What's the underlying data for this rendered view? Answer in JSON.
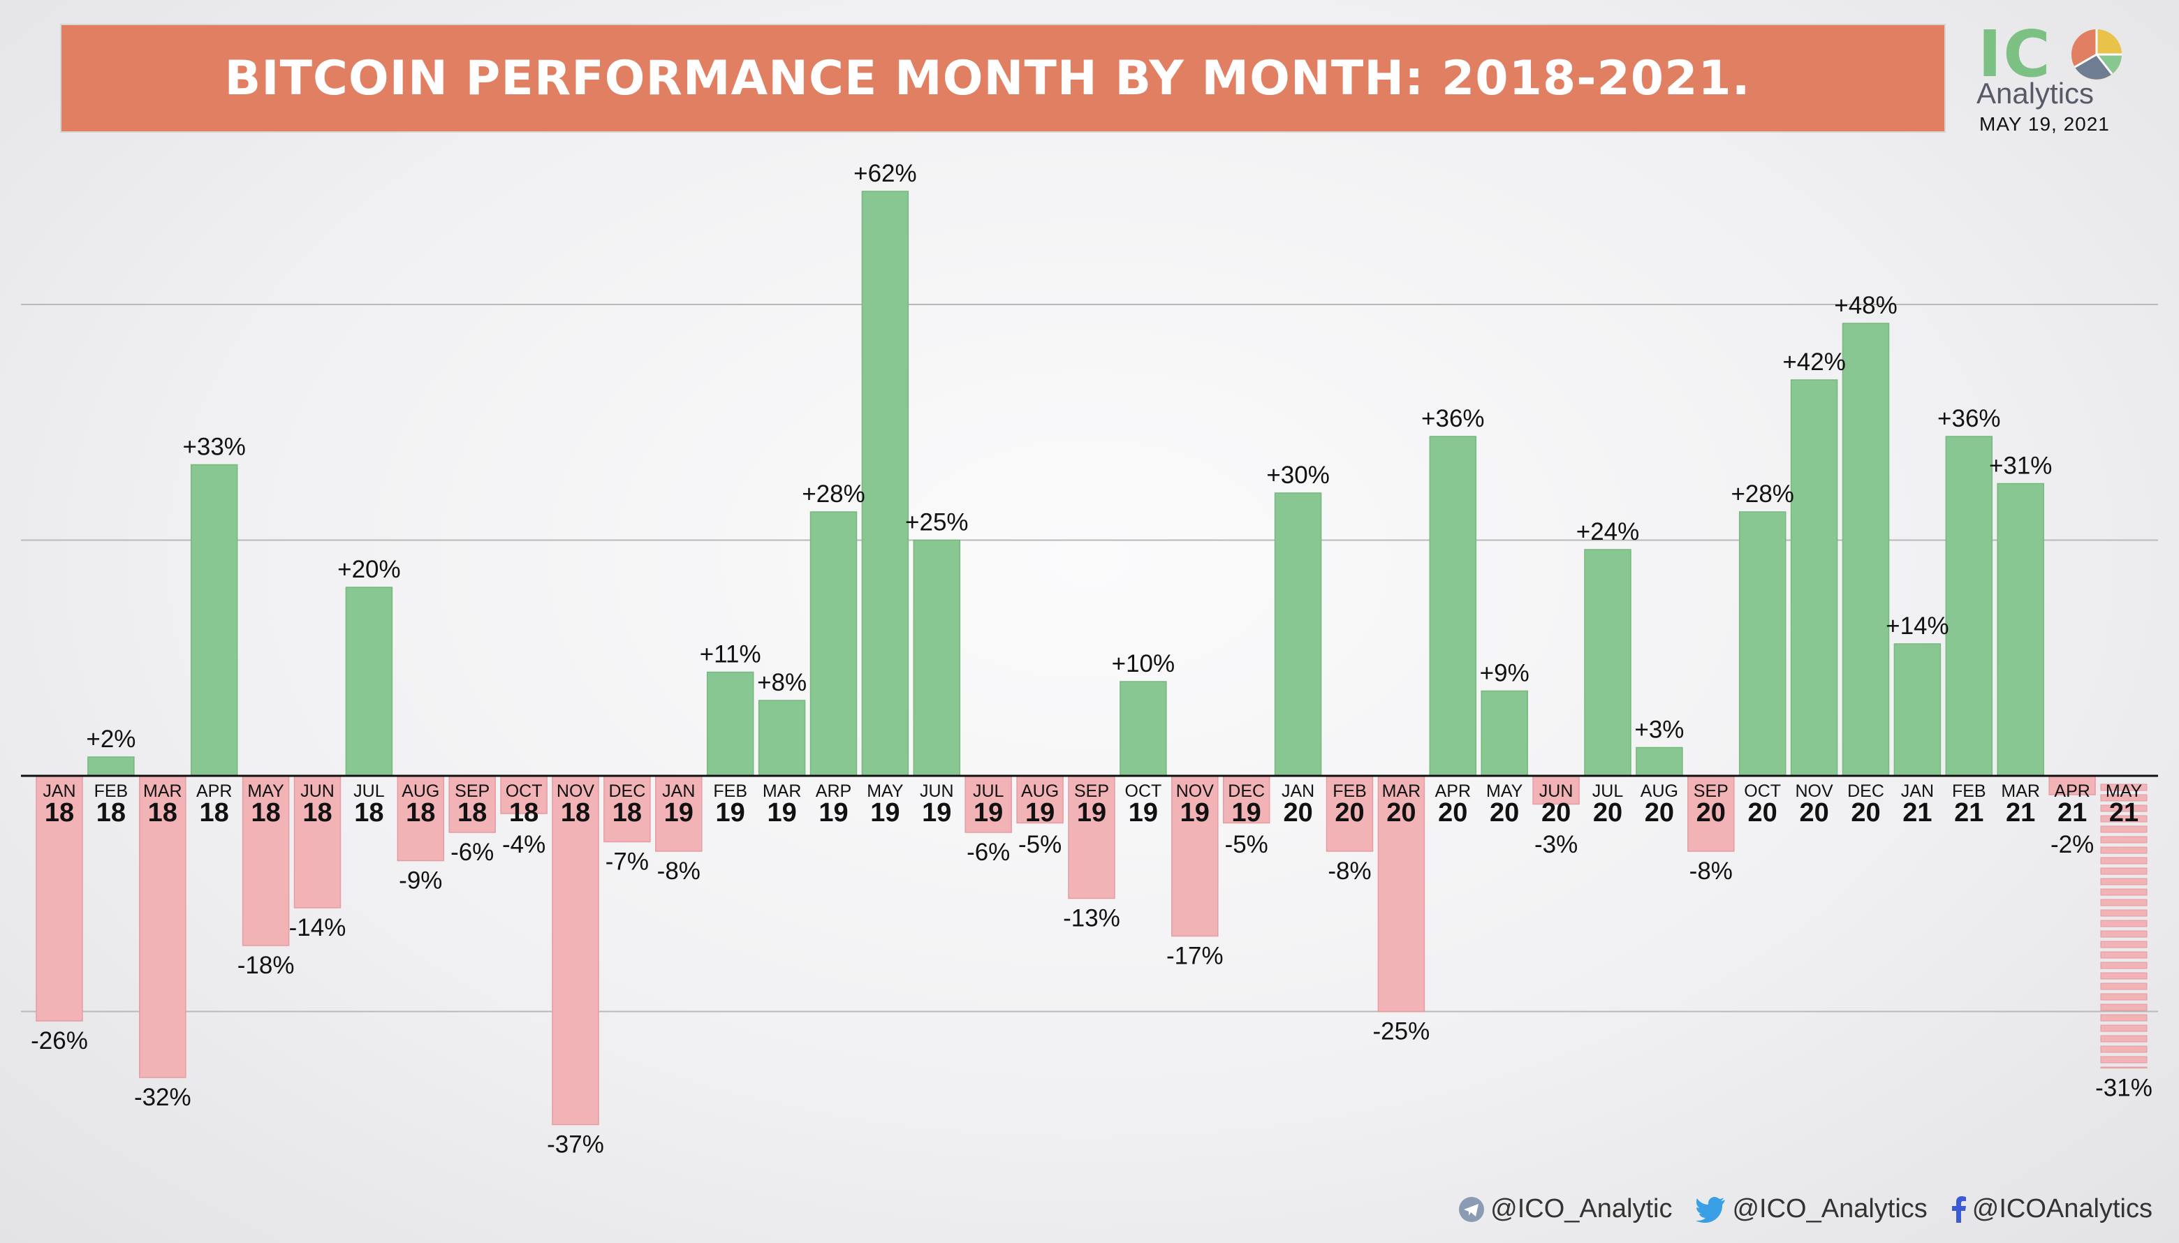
{
  "title": "BITCOIN PERFORMANCE MONTH BY MONTH: 2018-2021.",
  "logo": {
    "mark_letters": "IC",
    "name": "Analytics",
    "date": "MAY 19, 2021"
  },
  "footer": {
    "telegram": "@ICO_Analytic",
    "twitter": "@ICO_Analytics",
    "facebook": "@ICOAnalytics"
  },
  "colors": {
    "positive": "#88c791",
    "negative": "#f2b3b6",
    "banner": "#e17f63",
    "axis": "#111111",
    "grid": "#b9b9b9"
  },
  "chart_data": {
    "type": "bar",
    "title": "BITCOIN PERFORMANCE MONTH BY MONTH: 2018-2021.",
    "ylim": [
      -40,
      67
    ],
    "grid": true,
    "gridlines": [
      -25,
      25,
      50
    ],
    "categories": [
      {
        "month": "JAN",
        "year": "18"
      },
      {
        "month": "FEB",
        "year": "18"
      },
      {
        "month": "MAR",
        "year": "18"
      },
      {
        "month": "APR",
        "year": "18"
      },
      {
        "month": "MAY",
        "year": "18"
      },
      {
        "month": "JUN",
        "year": "18"
      },
      {
        "month": "JUL",
        "year": "18"
      },
      {
        "month": "AUG",
        "year": "18"
      },
      {
        "month": "SEP",
        "year": "18"
      },
      {
        "month": "OCT",
        "year": "18"
      },
      {
        "month": "NOV",
        "year": "18"
      },
      {
        "month": "DEC",
        "year": "18"
      },
      {
        "month": "JAN",
        "year": "19"
      },
      {
        "month": "FEB",
        "year": "19"
      },
      {
        "month": "MAR",
        "year": "19"
      },
      {
        "month": "ARP",
        "year": "19"
      },
      {
        "month": "MAY",
        "year": "19"
      },
      {
        "month": "JUN",
        "year": "19"
      },
      {
        "month": "JUL",
        "year": "19"
      },
      {
        "month": "AUG",
        "year": "19"
      },
      {
        "month": "SEP",
        "year": "19"
      },
      {
        "month": "OCT",
        "year": "19"
      },
      {
        "month": "NOV",
        "year": "19"
      },
      {
        "month": "DEC",
        "year": "19"
      },
      {
        "month": "JAN",
        "year": "20"
      },
      {
        "month": "FEB",
        "year": "20"
      },
      {
        "month": "MAR",
        "year": "20"
      },
      {
        "month": "APR",
        "year": "20"
      },
      {
        "month": "MAY",
        "year": "20"
      },
      {
        "month": "JUN",
        "year": "20"
      },
      {
        "month": "JUL",
        "year": "20"
      },
      {
        "month": "AUG",
        "year": "20"
      },
      {
        "month": "SEP",
        "year": "20"
      },
      {
        "month": "OCT",
        "year": "20"
      },
      {
        "month": "NOV",
        "year": "20"
      },
      {
        "month": "DEC",
        "year": "20"
      },
      {
        "month": "JAN",
        "year": "21"
      },
      {
        "month": "FEB",
        "year": "21"
      },
      {
        "month": "MAR",
        "year": "21"
      },
      {
        "month": "APR",
        "year": "21"
      },
      {
        "month": "MAY",
        "year": "21"
      }
    ],
    "values": [
      -26,
      2,
      -32,
      33,
      -18,
      -14,
      20,
      -9,
      -6,
      -4,
      -37,
      -7,
      -8,
      11,
      8,
      28,
      62,
      25,
      -6,
      -5,
      -13,
      10,
      -17,
      -5,
      30,
      -8,
      -25,
      36,
      9,
      -3,
      24,
      3,
      -8,
      28,
      42,
      48,
      14,
      36,
      31,
      -2,
      -31
    ],
    "labels": [
      "-26%",
      "+2%",
      "-32%",
      "+33%",
      "-18%",
      "-14%",
      "+20%",
      "-9%",
      "-6%",
      "-4%",
      "-37%",
      "-7%",
      "-8%",
      "+11%",
      "+8%",
      "+28%",
      "+62%",
      "+25%",
      "-6%",
      "-5%",
      "-13%",
      "+10%",
      "-17%",
      "-5%",
      "+30%",
      "-8%",
      "-25%",
      "+36%",
      "+9%",
      "-3%",
      "+24%",
      "+3%",
      "-8%",
      "+28%",
      "+42%",
      "+48%",
      "+14%",
      "+36%",
      "+31%",
      "-2%",
      "-31%"
    ],
    "in_progress_index": 40
  }
}
